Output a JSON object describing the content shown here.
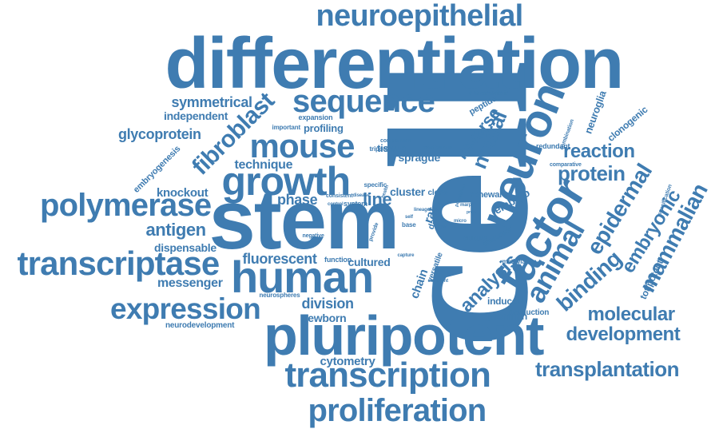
{
  "cloud": {
    "color": "#3f7cb1",
    "background": "#ffffff",
    "words": [
      "cell",
      "stem",
      "differentiation",
      "pluripotent",
      "human",
      "neuron",
      "factor",
      "neuroepithelial",
      "sequence",
      "mouse",
      "growth",
      "transcription",
      "proliferation",
      "transcriptase",
      "polymerase",
      "expression",
      "animal",
      "embryonic",
      "mammalian",
      "epidermal",
      "binding",
      "fibroblast",
      "protein",
      "reaction",
      "neural",
      "analysis",
      "transplantation",
      "development",
      "molecular",
      "antigen",
      "line",
      "symmetrical",
      "independent",
      "glycoprotein",
      "technique",
      "knockout",
      "dispensable",
      "messenger",
      "fluorescent",
      "division",
      "newborn",
      "cytometry",
      "reverse",
      "phase",
      "cluster",
      "embryo",
      "neuroglia",
      "clonogenic",
      "totipotent",
      "profiling",
      "expansion",
      "peptide",
      "characteristic",
      "tissue",
      "sprague",
      "dawley",
      "rat",
      "cultured",
      "function",
      "chain",
      "versatile",
      "induced",
      "prominin",
      "production",
      "methylation",
      "culture",
      "renewal",
      "clone",
      "neurospheres",
      "neurodevelopment",
      "embryogenesis",
      "important",
      "comparison",
      "continuous",
      "tripotent",
      "specific",
      "consistent",
      "disease",
      "system",
      "control",
      "negative",
      "capture",
      "sufficient",
      "provide",
      "base",
      "self",
      "flow",
      "precursor",
      "redundant",
      "combination",
      "comparative",
      "specification",
      "population",
      "health",
      "lineage",
      "marp",
      "proof",
      "micro"
    ]
  }
}
